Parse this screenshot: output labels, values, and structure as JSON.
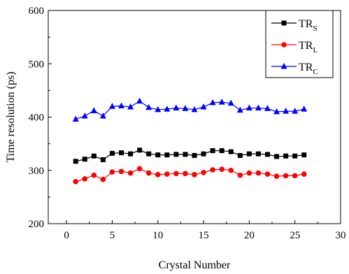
{
  "chart_data": {
    "type": "line",
    "xlabel": "Crystal Number",
    "ylabel": "Time resolution (ps)",
    "xlim": [
      -2,
      30
    ],
    "ylim": [
      200,
      600
    ],
    "xticks": [
      0,
      5,
      10,
      15,
      20,
      25,
      30
    ],
    "yticks": [
      200,
      300,
      400,
      500,
      600
    ],
    "legend_position": "top-right",
    "grid": false,
    "x": [
      1,
      2,
      3,
      4,
      5,
      6,
      7,
      8,
      9,
      10,
      11,
      12,
      13,
      14,
      15,
      16,
      17,
      18,
      19,
      20,
      21,
      22,
      23,
      24,
      25,
      26
    ],
    "series": [
      {
        "name": "TR",
        "subscript": "S",
        "color": "#000000",
        "marker": "square",
        "values": [
          317,
          321,
          327,
          320,
          332,
          333,
          331,
          338,
          331,
          329,
          329,
          330,
          330,
          328,
          331,
          337,
          337,
          335,
          328,
          331,
          331,
          330,
          326,
          327,
          327,
          329
        ]
      },
      {
        "name": "TR",
        "subscript": "L",
        "color": "#ff0000",
        "marker": "circle",
        "values": [
          279,
          284,
          291,
          283,
          297,
          298,
          295,
          303,
          295,
          292,
          293,
          294,
          294,
          292,
          296,
          301,
          302,
          300,
          291,
          295,
          295,
          293,
          289,
          290,
          290,
          293
        ]
      },
      {
        "name": "TR",
        "subscript": "C",
        "color": "#0000ff",
        "marker": "triangle",
        "values": [
          396,
          402,
          412,
          402,
          420,
          421,
          419,
          430,
          418,
          414,
          415,
          417,
          416,
          414,
          419,
          427,
          428,
          426,
          413,
          417,
          417,
          416,
          410,
          411,
          411,
          415
        ]
      }
    ]
  }
}
